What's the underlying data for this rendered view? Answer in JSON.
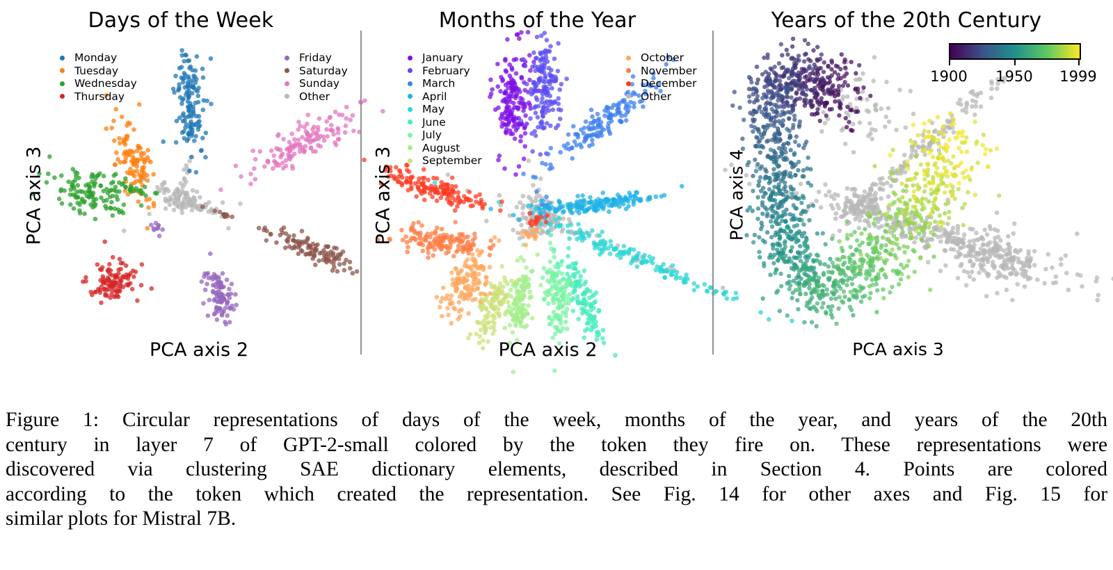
{
  "panels": {
    "days": {
      "title": "Days of the Week",
      "xlabel": "PCA axis 2",
      "ylabel": "PCA axis 3",
      "legend_left": [
        {
          "label": "Monday",
          "color": "#1f77b4"
        },
        {
          "label": "Tuesday",
          "color": "#ff7f0e"
        },
        {
          "label": "Wednesday",
          "color": "#2ca02c"
        },
        {
          "label": "Thursday",
          "color": "#d62728"
        }
      ],
      "legend_right": [
        {
          "label": "Friday",
          "color": "#9467bd"
        },
        {
          "label": "Saturday",
          "color": "#8c564b"
        },
        {
          "label": "Sunday",
          "color": "#e377c2"
        },
        {
          "label": "Other",
          "color": "#b8b8b8"
        }
      ]
    },
    "months": {
      "title": "Months of the Year",
      "xlabel": "PCA axis 2",
      "ylabel": "PCA axis 3",
      "legend_left": [
        {
          "label": "January",
          "color": "#7e0ee8"
        },
        {
          "label": "February",
          "color": "#5a4cf0"
        },
        {
          "label": "March",
          "color": "#3f7ff0"
        },
        {
          "label": "April",
          "color": "#1fb2e4"
        },
        {
          "label": "May",
          "color": "#2ed6d6"
        },
        {
          "label": "June",
          "color": "#45ebbd"
        },
        {
          "label": "July",
          "color": "#7af4a3"
        },
        {
          "label": "August",
          "color": "#a6ee8c"
        },
        {
          "label": "September",
          "color": "#cde17c"
        }
      ],
      "legend_right": [
        {
          "label": "October",
          "color": "#ffa860"
        },
        {
          "label": "November",
          "color": "#ff7d45"
        },
        {
          "label": "December",
          "color": "#ff3b22"
        },
        {
          "label": "Other",
          "color": "#b8b8b8"
        }
      ]
    },
    "years": {
      "title": "Years of the 20th Century",
      "xlabel": "PCA axis 3",
      "ylabel": "PCA axis 4",
      "colorbar": {
        "min_label": "1900",
        "mid_label": "1950",
        "max_label": "1999",
        "colormap": "viridis"
      }
    }
  },
  "chart_data": [
    {
      "type": "scatter",
      "title": "Days of the Week",
      "xlabel": "PCA axis 2",
      "ylabel": "PCA axis 3",
      "series": [
        {
          "name": "Monday",
          "cluster": "upper-center, elongated vertically"
        },
        {
          "name": "Tuesday",
          "cluster": "upper-left, near origin"
        },
        {
          "name": "Wednesday",
          "cluster": "left"
        },
        {
          "name": "Thursday",
          "cluster": "lower-left"
        },
        {
          "name": "Friday",
          "cluster": "bottom-center"
        },
        {
          "name": "Saturday",
          "cluster": "right"
        },
        {
          "name": "Sunday",
          "cluster": "upper-right"
        },
        {
          "name": "Other",
          "cluster": "center star"
        }
      ]
    },
    {
      "type": "scatter",
      "title": "Months of the Year",
      "xlabel": "PCA axis 2",
      "ylabel": "PCA axis 3",
      "series": [
        {
          "name": "January"
        },
        {
          "name": "February"
        },
        {
          "name": "March"
        },
        {
          "name": "April"
        },
        {
          "name": "May"
        },
        {
          "name": "June"
        },
        {
          "name": "July"
        },
        {
          "name": "August"
        },
        {
          "name": "September"
        },
        {
          "name": "October"
        },
        {
          "name": "November"
        },
        {
          "name": "December"
        },
        {
          "name": "Other"
        }
      ]
    },
    {
      "type": "scatter",
      "title": "Years of the 20th Century",
      "xlabel": "PCA axis 3",
      "ylabel": "PCA axis 4",
      "color_range": [
        1900,
        1999
      ]
    }
  ],
  "caption": {
    "lines": [
      "Figure 1: Circular representations of days of the week, months of the year, and years of the 20th",
      "century in layer 7 of GPT-2-small colored by the token they fire on. These representations were",
      "discovered via clustering SAE dictionary elements, described in Section 4. Points are colored",
      "according to the token which created the representation. See Fig. 14 for other axes and Fig. 15 for",
      "similar plots for Mistral 7B."
    ]
  }
}
